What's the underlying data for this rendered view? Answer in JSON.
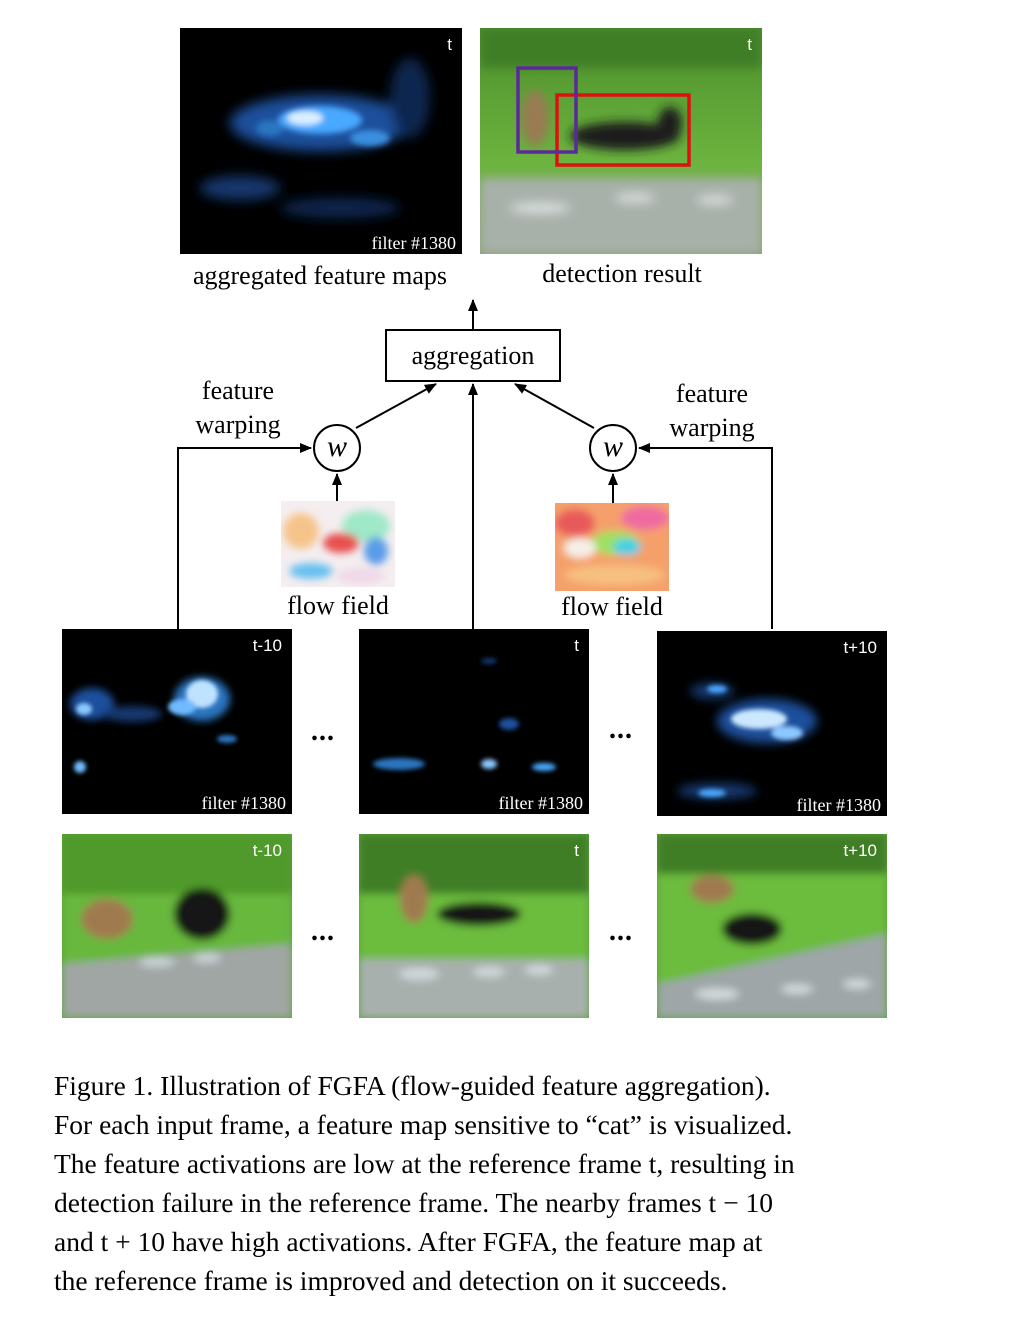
{
  "top": {
    "feature_panel": {
      "tag_time": "t",
      "tag_filter": "filter #1380",
      "label": "aggregated feature maps"
    },
    "detection_panel": {
      "tag_time": "t",
      "label": "detection result"
    }
  },
  "aggregation": {
    "label": "aggregation"
  },
  "warp_left": {
    "symbol": "w",
    "label_line1": "feature",
    "label_line2": "warping"
  },
  "warp_right": {
    "symbol": "w",
    "label_line1": "feature",
    "label_line2": "warping"
  },
  "flow_left": {
    "label": "flow field"
  },
  "flow_right": {
    "label": "flow field"
  },
  "feature_row": [
    {
      "time": "t-10",
      "filter": "filter #1380"
    },
    {
      "time": "t",
      "filter": "filter #1380"
    },
    {
      "time": "t+10",
      "filter": "filter #1380"
    }
  ],
  "image_row": [
    {
      "time": "t-10"
    },
    {
      "time": "t"
    },
    {
      "time": "t+10"
    }
  ],
  "ellipsis": "...",
  "caption": {
    "lines": [
      "Figure 1. Illustration of FGFA (flow-guided feature aggregation).",
      "For each input frame, a feature map sensitive to “cat” is visualized.",
      "The feature activations are low at the reference frame t, resulting in",
      "detection failure in the reference frame. The nearby frames t − 10",
      "and t + 10 have high activations. After FGFA, the feature map at",
      "the reference frame is improved and detection on it succeeds."
    ]
  },
  "colors": {
    "feature_bg": "#000000",
    "activation": "#4aa8ff",
    "detection_box_red": "#e01010",
    "detection_box_purple": "#5a2a9a",
    "grass": "#4f9a2a"
  }
}
